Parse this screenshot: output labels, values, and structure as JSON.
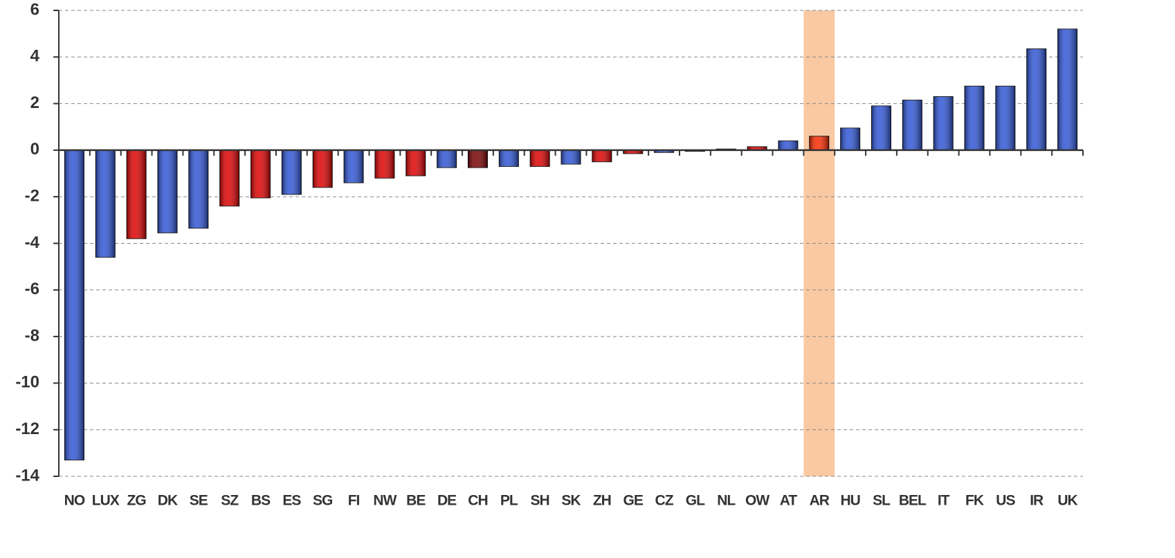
{
  "chart_data": {
    "type": "bar",
    "categories": [
      "NO",
      "LUX",
      "ZG",
      "DK",
      "SE",
      "SZ",
      "BS",
      "ES",
      "SG",
      "FI",
      "NW",
      "BE",
      "DE",
      "CH",
      "PL",
      "SH",
      "SK",
      "ZH",
      "GE",
      "CZ",
      "GL",
      "NL",
      "OW",
      "AT",
      "AR",
      "HU",
      "SL",
      "BEL",
      "IT",
      "FK",
      "US",
      "IR",
      "UK"
    ],
    "values": [
      -13.3,
      -4.6,
      -3.8,
      -3.55,
      -3.35,
      -2.4,
      -2.05,
      -1.9,
      -1.6,
      -1.4,
      -1.2,
      -1.1,
      -0.75,
      -0.75,
      -0.7,
      -0.7,
      -0.6,
      -0.5,
      -0.15,
      -0.1,
      -0.05,
      0.05,
      0.15,
      0.4,
      0.6,
      0.95,
      1.9,
      2.15,
      2.3,
      2.75,
      2.75,
      4.35,
      5.2
    ],
    "colors": [
      "#2f56d8",
      "#2f56d8",
      "#e00000",
      "#2f56d8",
      "#2f56d8",
      "#e00000",
      "#e00000",
      "#2f56d8",
      "#e00000",
      "#2f56d8",
      "#e00000",
      "#e00000",
      "#2f56d8",
      "#7a0000",
      "#2f56d8",
      "#e00000",
      "#2f56d8",
      "#e00000",
      "#e00000",
      "#2f56d8",
      "#e00000",
      "#2f56d8",
      "#e00000",
      "#2f56d8",
      "#ff2a00",
      "#2f56d8",
      "#2f56d8",
      "#2f56d8",
      "#2f56d8",
      "#2f56d8",
      "#2f56d8",
      "#2f56d8",
      "#2f56d8"
    ],
    "highlight_index": 24,
    "highlight_color": "#f9c9a3",
    "ylim": [
      -14,
      6
    ],
    "yticks": [
      -14,
      -12,
      -10,
      -8,
      -6,
      -4,
      -2,
      0,
      2,
      4,
      6
    ],
    "grid": true
  }
}
